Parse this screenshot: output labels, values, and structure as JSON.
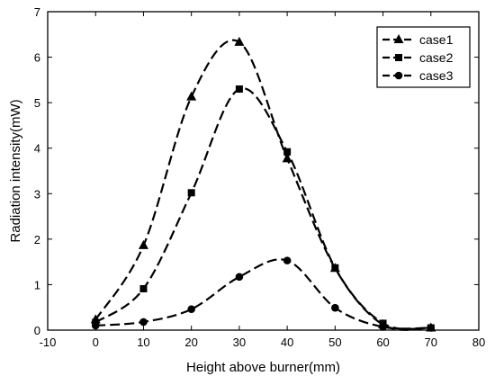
{
  "chart_data": {
    "type": "line",
    "xlabel": "Height above burner(mm)",
    "ylabel": "Radiation intensity(mW)",
    "xlim": [
      -10,
      80
    ],
    "ylim": [
      0,
      7
    ],
    "xticks": [
      -10,
      0,
      10,
      20,
      30,
      40,
      50,
      60,
      70,
      80
    ],
    "yticks": [
      0,
      1,
      2,
      3,
      4,
      5,
      6,
      7
    ],
    "grid": false,
    "legend_position": "top-right",
    "series": [
      {
        "name": "case1",
        "marker": "triangle",
        "x": [
          0,
          10,
          20,
          30,
          40,
          50,
          60,
          70
        ],
        "y": [
          0.23,
          1.86,
          5.13,
          6.33,
          3.77,
          1.36,
          0.12,
          0.05
        ]
      },
      {
        "name": "case2",
        "marker": "square",
        "x": [
          0,
          10,
          20,
          30,
          40,
          50,
          60,
          70
        ],
        "y": [
          0.17,
          0.91,
          3.02,
          5.3,
          3.92,
          1.37,
          0.15,
          0.05
        ]
      },
      {
        "name": "case3",
        "marker": "circle",
        "x": [
          0,
          10,
          20,
          30,
          40,
          50,
          60,
          70
        ],
        "y": [
          0.1,
          0.18,
          0.46,
          1.17,
          1.53,
          0.49,
          0.07,
          0.05
        ]
      }
    ]
  }
}
